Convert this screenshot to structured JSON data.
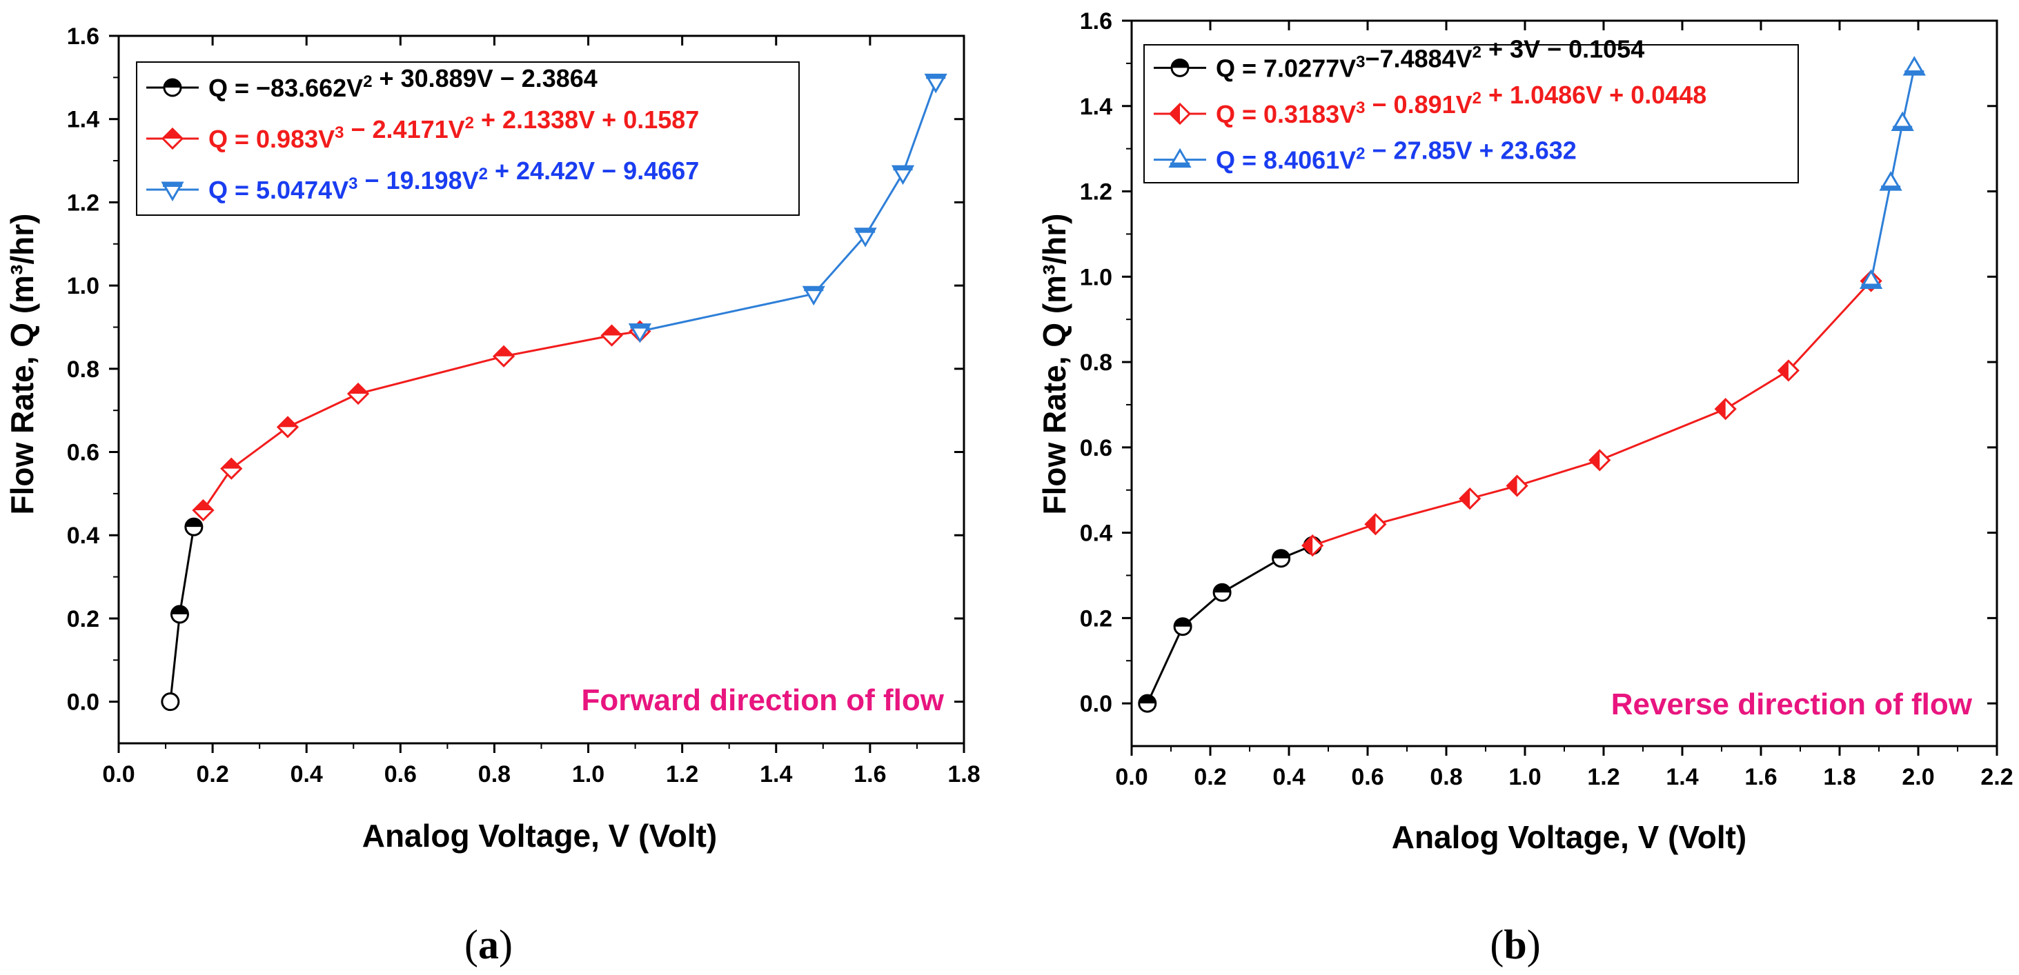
{
  "colors": {
    "black": "#000000",
    "red": "#f21c1c",
    "blue": "#2e7fd8",
    "legend_blue_text": "#1a3df0",
    "annotation": "#e8157f"
  },
  "chart_data": [
    {
      "type": "line",
      "panel": "a",
      "panel_label": "a",
      "xlabel": "Analog Voltage, V (Volt)",
      "ylabel": "Flow Rate, Q (m³/hr)",
      "xlim": [
        0.0,
        1.8
      ],
      "ylim": [
        -0.1,
        1.6
      ],
      "x_ticks": [
        "0.0",
        "0.2",
        "0.4",
        "0.6",
        "0.8",
        "1.0",
        "1.2",
        "1.4",
        "1.6",
        "1.8"
      ],
      "x_tick_values": [
        0.0,
        0.2,
        0.4,
        0.6,
        0.8,
        1.0,
        1.2,
        1.4,
        1.6,
        1.8
      ],
      "y_ticks": [
        "0.0",
        "0.2",
        "0.4",
        "0.6",
        "0.8",
        "1.0",
        "1.2",
        "1.4",
        "1.6"
      ],
      "y_tick_values": [
        0.0,
        0.2,
        0.4,
        0.6,
        0.8,
        1.0,
        1.2,
        1.4,
        1.6
      ],
      "annotation": "Forward direction of flow",
      "series": [
        {
          "name": "Q = −83.662V² + 30.889V − 2.3864",
          "color": "black",
          "marker": "circle",
          "x": [
            0.11,
            0.13,
            0.16
          ],
          "y": [
            0.0,
            0.21,
            0.42
          ]
        },
        {
          "name": "Q = 0.983V³ − 2.4171V² + 2.1338V + 0.1587",
          "color": "red",
          "marker": "diamond",
          "x": [
            0.18,
            0.24,
            0.36,
            0.51,
            0.82,
            1.05,
            1.11
          ],
          "y": [
            0.46,
            0.56,
            0.66,
            0.74,
            0.83,
            0.88,
            0.89
          ]
        },
        {
          "name": "Q = 5.0474V³ − 19.198V² + 24.42V − 9.4667",
          "color": "blue",
          "marker": "triangle-down",
          "x": [
            1.11,
            1.48,
            1.59,
            1.67,
            1.74
          ],
          "y": [
            0.89,
            0.98,
            1.12,
            1.27,
            1.49
          ]
        }
      ],
      "legend": [
        {
          "label": "Q = −83.662V",
          "sup": "2",
          "rest": " + 30.889V − 2.3864",
          "series": 0
        },
        {
          "label": "Q = 0.983V",
          "sup": "3",
          "rest": " − 2.4171V",
          "sup2": "2",
          "rest2": " + 2.1338V + 0.1587",
          "series": 1
        },
        {
          "label": "Q = 5.0474V",
          "sup": "3",
          "rest": " − 19.198V",
          "sup2": "2",
          "rest2": " + 24.42V − 9.4667",
          "series": 2
        }
      ]
    },
    {
      "type": "line",
      "panel": "b",
      "panel_label": "b",
      "xlabel": "Analog Voltage, V (Volt)",
      "ylabel": "Flow Rate, Q (m³/hr)",
      "xlim": [
        0.0,
        2.2
      ],
      "ylim": [
        -0.1,
        1.6
      ],
      "x_ticks": [
        "0.0",
        "0.2",
        "0.4",
        "0.6",
        "0.8",
        "1.0",
        "1.2",
        "1.4",
        "1.6",
        "1.8",
        "2.0",
        "2.2"
      ],
      "x_tick_values": [
        0.0,
        0.2,
        0.4,
        0.6,
        0.8,
        1.0,
        1.2,
        1.4,
        1.6,
        1.8,
        2.0,
        2.2
      ],
      "y_ticks": [
        "0.0",
        "0.2",
        "0.4",
        "0.6",
        "0.8",
        "1.0",
        "1.2",
        "1.4",
        "1.6"
      ],
      "y_tick_values": [
        0.0,
        0.2,
        0.4,
        0.6,
        0.8,
        1.0,
        1.2,
        1.4,
        1.6
      ],
      "annotation": "Reverse direction of flow",
      "series": [
        {
          "name": "Q = 7.0277V³ − 7.4884V² + 3V − 0.1054",
          "color": "black",
          "marker": "circle-half",
          "x": [
            0.04,
            0.13,
            0.23,
            0.38,
            0.46
          ],
          "y": [
            0.0,
            0.18,
            0.26,
            0.34,
            0.37
          ]
        },
        {
          "name": "Q = 0.3183V³ − 0.891V² + 1.0486V + 0.0448",
          "color": "red",
          "marker": "diamond-half",
          "x": [
            0.46,
            0.62,
            0.86,
            0.98,
            1.19,
            1.51,
            1.67,
            1.88
          ],
          "y": [
            0.37,
            0.42,
            0.48,
            0.51,
            0.57,
            0.69,
            0.78,
            0.99
          ]
        },
        {
          "name": "Q = 8.4061V² − 27.85V + 23.632",
          "color": "blue",
          "marker": "triangle-up",
          "x": [
            1.88,
            1.93,
            1.96,
            1.99
          ],
          "y": [
            0.99,
            1.22,
            1.36,
            1.49
          ]
        }
      ],
      "legend": [
        {
          "label": "Q = 7.0277V",
          "sup": "3",
          "rest": "−7.4884V",
          "sup2": "2",
          "rest2": " + 3V − 0.1054",
          "series": 0
        },
        {
          "label": "Q = 0.3183V",
          "sup": "3",
          "rest": " − 0.891V",
          "sup2": "2",
          "rest2": " + 1.0486V + 0.0448",
          "series": 1
        },
        {
          "label": "Q = 8.4061V",
          "sup": "2",
          "rest": " − 27.85V + 23.632",
          "series": 2
        }
      ]
    }
  ]
}
